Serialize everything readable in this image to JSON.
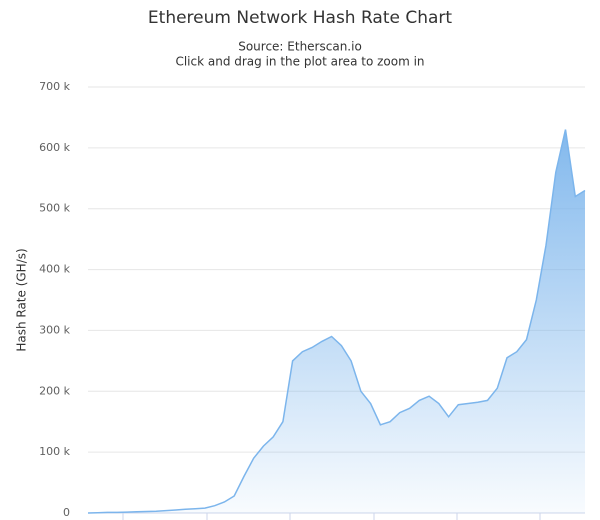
{
  "chart_data": {
    "type": "area",
    "title": "Ethereum Network Hash Rate Chart",
    "subtitle": [
      "Source: Etherscan.io",
      "Click and drag in the plot area to zoom in"
    ],
    "y_label": "Hash Rate (GH/s)",
    "color": "#7cb5ec",
    "values": [
      0,
      500,
      1000,
      1000,
      1500,
      2000,
      2500,
      3000,
      4000,
      5000,
      6000,
      7000,
      8000,
      12000,
      18000,
      28000,
      60000,
      90000,
      110000,
      125000,
      150000,
      250000,
      265000,
      272000,
      282000,
      290000,
      275000,
      250000,
      200000,
      180000,
      145000,
      150000,
      165000,
      172000,
      185000,
      192000,
      180000,
      158000,
      178000,
      180000,
      182000,
      185000,
      205000,
      255000,
      265000,
      285000,
      350000,
      440000,
      560000,
      630000,
      520000,
      530000
    ],
    "ylim": [
      0,
      700000
    ],
    "yticks": [
      {
        "value": 0,
        "label": "0"
      },
      {
        "value": 100000,
        "label": "100 k"
      },
      {
        "value": 200000,
        "label": "200 k"
      },
      {
        "value": 300000,
        "label": "300 k"
      },
      {
        "value": 400000,
        "label": "400 k"
      },
      {
        "value": 500000,
        "label": "500 k"
      },
      {
        "value": 600000,
        "label": "600 k"
      },
      {
        "value": 700000,
        "label": "700 k"
      }
    ],
    "grid": true
  }
}
